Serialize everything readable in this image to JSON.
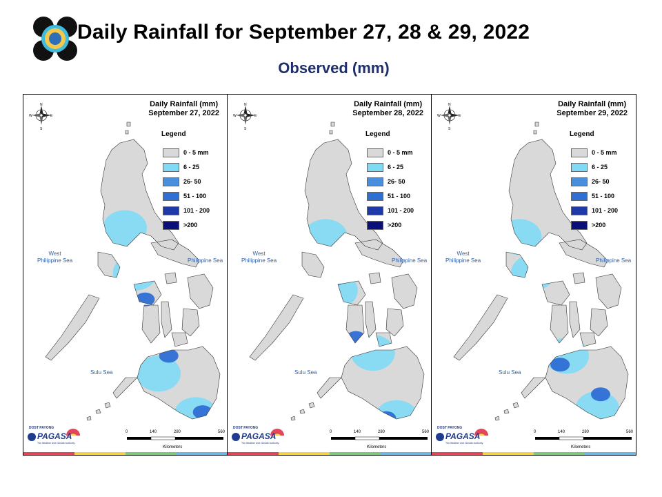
{
  "header": {
    "title": "Daily Rainfall for September 27, 28 & 29, 2022",
    "subtitle": "Observed (mm)"
  },
  "legend": {
    "title": "Legend",
    "classes": [
      {
        "label": "0 - 5 mm",
        "color": "#d9d9d9"
      },
      {
        "label": "6 - 25",
        "color": "#7fdaf5"
      },
      {
        "label": "26- 50",
        "color": "#4a8fde"
      },
      {
        "label": "51 - 100",
        "color": "#2f6fd4"
      },
      {
        "label": "101 - 200",
        "color": "#1f3aa8"
      },
      {
        "label": ">200",
        "color": "#0b0f7a"
      }
    ]
  },
  "panels": [
    {
      "title_line1": "Daily Rainfall (mm)",
      "title_line2": "September 27, 2022",
      "heavy": [
        [
          180,
          345
        ],
        [
          160,
          380
        ],
        [
          215,
          440
        ],
        [
          265,
          535
        ]
      ],
      "light": [
        [
          150,
          225
        ],
        [
          165,
          300
        ],
        [
          200,
          470
        ],
        [
          255,
          540
        ]
      ]
    },
    {
      "title_line1": "Daily Rainfall (mm)",
      "title_line2": "September 28, 2022",
      "heavy": [
        [
          160,
          310
        ],
        [
          190,
          410
        ],
        [
          235,
          545
        ]
      ],
      "light": [
        [
          145,
          240
        ],
        [
          160,
          330
        ],
        [
          215,
          435
        ],
        [
          250,
          545
        ]
      ]
    },
    {
      "title_line1": "Daily Rainfall (mm)",
      "title_line2": "September 29, 2022",
      "heavy": [
        [
          120,
          255
        ],
        [
          140,
          380
        ],
        [
          190,
          455
        ],
        [
          250,
          505
        ]
      ],
      "light": [
        [
          130,
          240
        ],
        [
          150,
          300
        ],
        [
          200,
          440
        ],
        [
          245,
          530
        ]
      ]
    }
  ],
  "map_labels": {
    "west_sea_line1": "West",
    "west_sea_line2": "Philippine Sea",
    "phil_sea": "Philippine Sea",
    "sulu_sea": "Sulu Sea",
    "scale_ticks": [
      "0",
      "140",
      "280",
      "560"
    ],
    "scale_unit": "Kilometers",
    "compass_n": "N",
    "compass_s": "S",
    "compass_e": "E",
    "compass_w": "W"
  },
  "agency": {
    "small": "DOST PAYONG",
    "name": "PAGASA",
    "tagline": "The Weather and Climate Authority"
  },
  "footer_colors": [
    "#e0475a",
    "#f2d24a",
    "#7fc77a",
    "#6fb7e0"
  ]
}
